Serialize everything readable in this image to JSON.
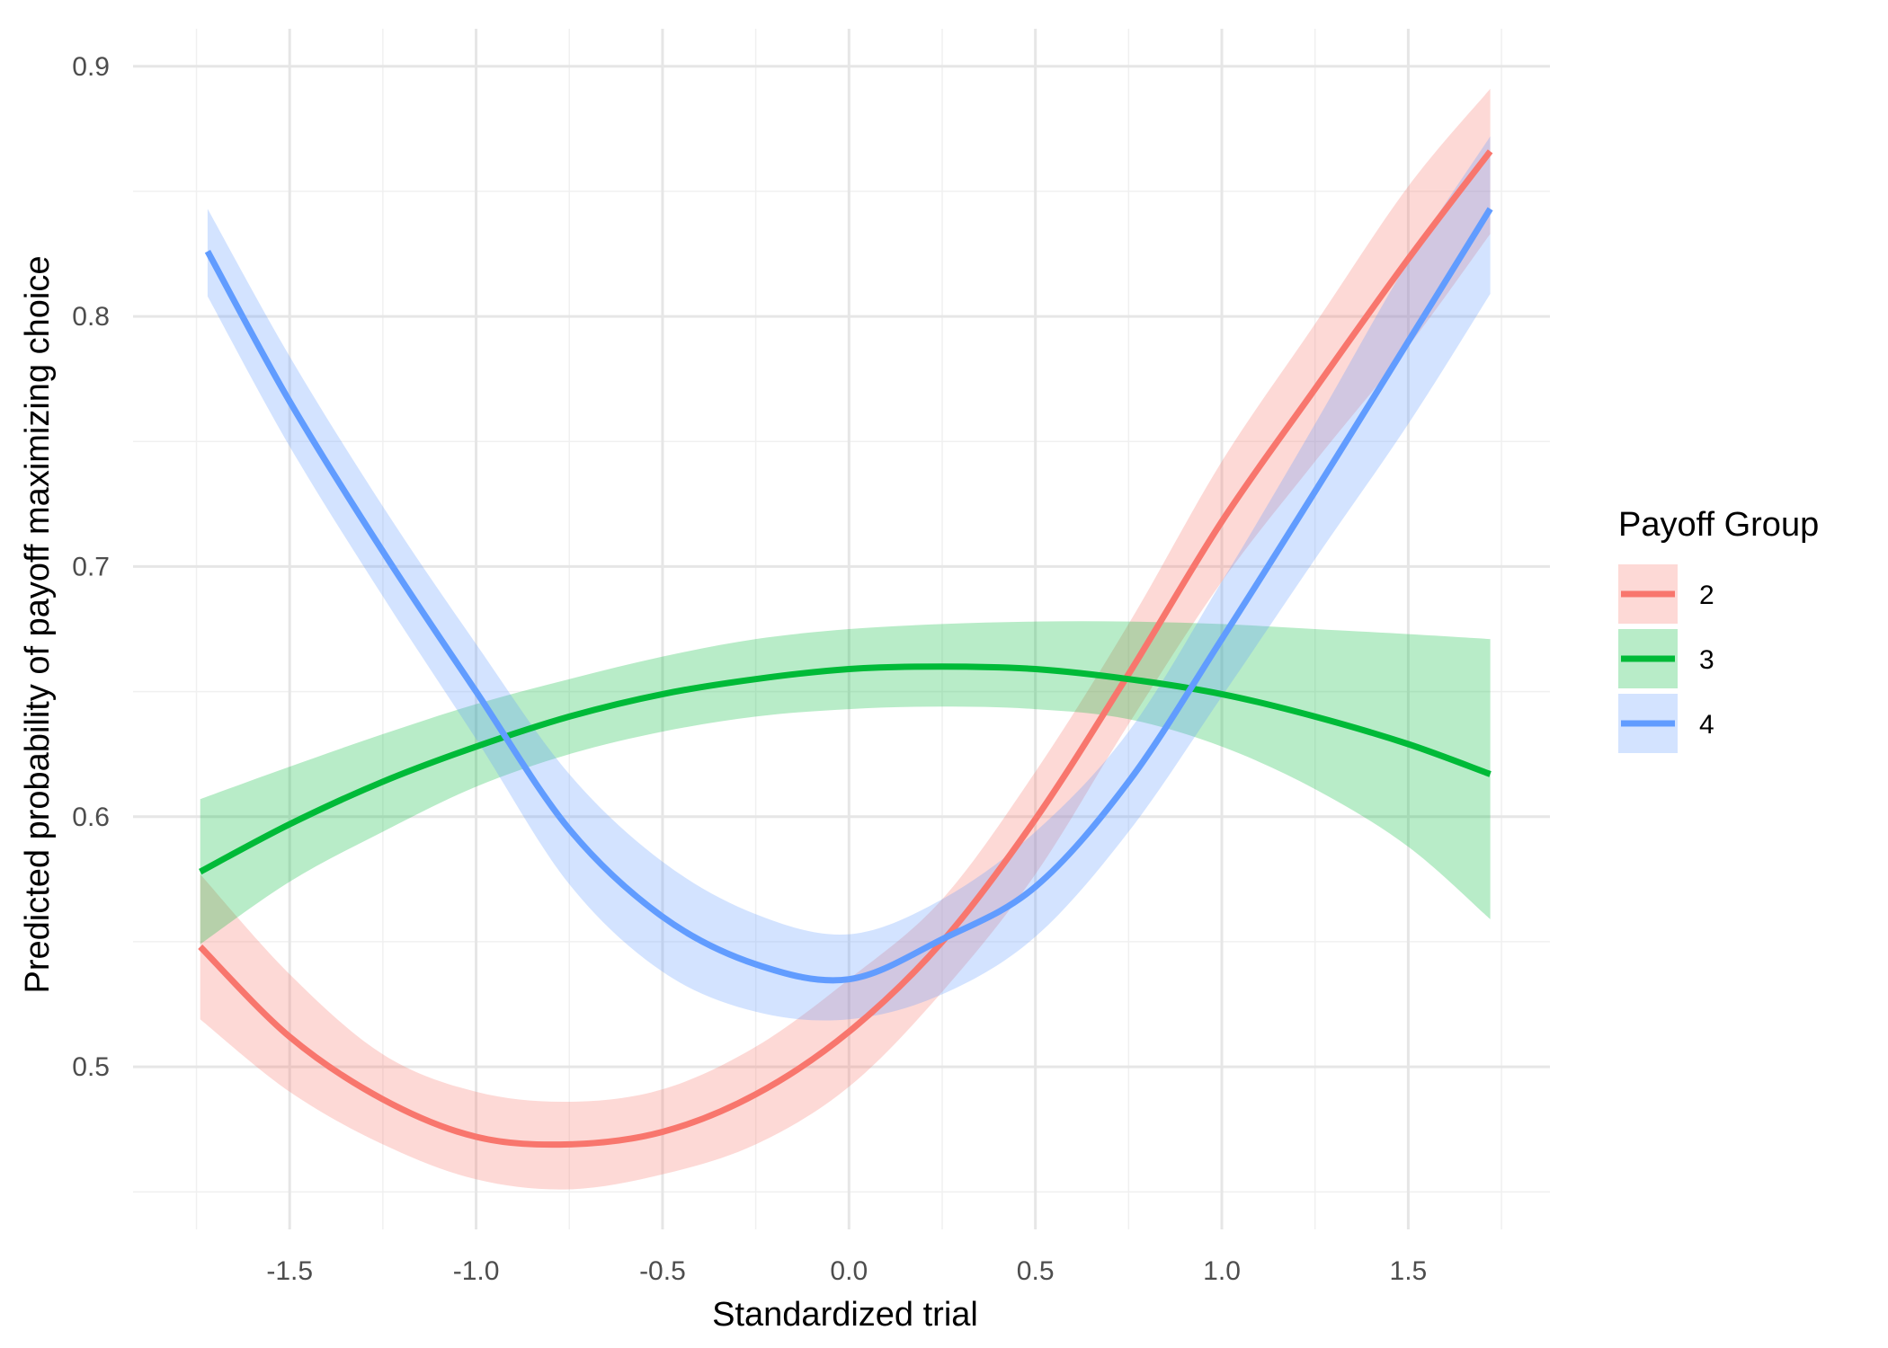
{
  "chart_data": {
    "type": "line",
    "xlabel": "Standardized trial",
    "ylabel": "Predicted probability of payoff maximizing choice",
    "xlim": [
      -1.92,
      1.88
    ],
    "ylim": [
      0.435,
      0.915
    ],
    "xticks": [
      -1.5,
      -1.0,
      -0.5,
      0.0,
      0.5,
      1.0,
      1.5
    ],
    "xtick_labels": [
      "-1.5",
      "-1.0",
      "-0.5",
      "0.0",
      "0.5",
      "1.0",
      "1.5"
    ],
    "yticks": [
      0.5,
      0.6,
      0.7,
      0.8,
      0.9
    ],
    "ytick_labels": [
      "0.5",
      "0.6",
      "0.7",
      "0.8",
      "0.9"
    ],
    "grid": true,
    "legend": {
      "title": "Payoff Group",
      "position": "right"
    },
    "series": [
      {
        "name": "2",
        "color": "#F8766D",
        "band_color": "#FDD8D6",
        "x": [
          -1.74,
          -1.5,
          -1.25,
          -1.0,
          -0.75,
          -0.5,
          -0.25,
          0.0,
          0.25,
          0.5,
          0.75,
          1.0,
          1.25,
          1.5,
          1.72
        ],
        "y": [
          0.548,
          0.512,
          0.487,
          0.472,
          0.469,
          0.474,
          0.489,
          0.514,
          0.55,
          0.599,
          0.657,
          0.718,
          0.771,
          0.823,
          0.866
        ],
        "lower": [
          0.519,
          0.49,
          0.469,
          0.455,
          0.451,
          0.457,
          0.469,
          0.492,
          0.53,
          0.577,
          0.637,
          0.694,
          0.742,
          0.788,
          0.833
        ],
        "upper": [
          0.577,
          0.537,
          0.505,
          0.49,
          0.486,
          0.491,
          0.508,
          0.535,
          0.567,
          0.618,
          0.677,
          0.742,
          0.797,
          0.852,
          0.891
        ]
      },
      {
        "name": "3",
        "color": "#00BA38",
        "band_color": "#CDEFD7",
        "x": [
          -1.74,
          -1.5,
          -1.25,
          -1.0,
          -0.75,
          -0.5,
          -0.25,
          0.0,
          0.25,
          0.5,
          0.75,
          1.0,
          1.25,
          1.5,
          1.72
        ],
        "y": [
          0.578,
          0.597,
          0.614,
          0.628,
          0.64,
          0.649,
          0.655,
          0.659,
          0.66,
          0.659,
          0.655,
          0.649,
          0.64,
          0.629,
          0.617
        ],
        "lower": [
          0.549,
          0.574,
          0.594,
          0.612,
          0.625,
          0.634,
          0.64,
          0.643,
          0.644,
          0.643,
          0.639,
          0.628,
          0.611,
          0.588,
          0.559
        ],
        "upper": [
          0.607,
          0.62,
          0.633,
          0.645,
          0.655,
          0.664,
          0.671,
          0.675,
          0.677,
          0.678,
          0.678,
          0.677,
          0.675,
          0.673,
          0.671
        ]
      },
      {
        "name": "4",
        "color": "#619CFF",
        "band_color": "#DDE8FC",
        "x": [
          -1.72,
          -1.5,
          -1.25,
          -1.0,
          -0.75,
          -0.5,
          -0.25,
          0.0,
          0.25,
          0.5,
          0.75,
          1.0,
          1.25,
          1.5,
          1.72
        ],
        "y": [
          0.826,
          0.766,
          0.706,
          0.65,
          0.595,
          0.56,
          0.541,
          0.535,
          0.551,
          0.572,
          0.614,
          0.671,
          0.73,
          0.79,
          0.843
        ],
        "lower": [
          0.808,
          0.748,
          0.688,
          0.631,
          0.573,
          0.538,
          0.522,
          0.519,
          0.529,
          0.552,
          0.594,
          0.648,
          0.703,
          0.757,
          0.809
        ],
        "upper": [
          0.843,
          0.784,
          0.724,
          0.669,
          0.617,
          0.582,
          0.561,
          0.553,
          0.567,
          0.594,
          0.634,
          0.694,
          0.757,
          0.822,
          0.872
        ]
      }
    ]
  }
}
